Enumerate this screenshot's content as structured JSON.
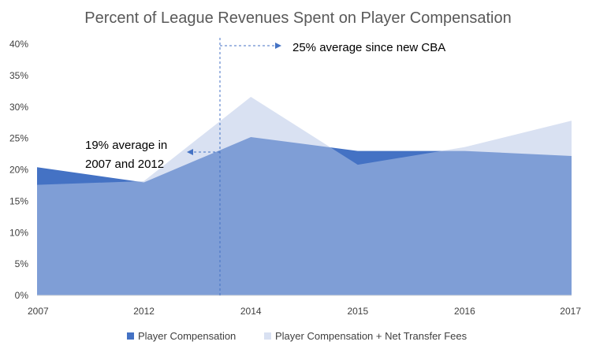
{
  "chart_data": {
    "type": "area",
    "title": "Percent of League Revenues Spent on Player Compensation",
    "categories": [
      "2007",
      "2012",
      "2014",
      "2015",
      "2016",
      "2017"
    ],
    "series": [
      {
        "name": "Player Compensation",
        "values": [
          20.4,
          18.0,
          25.2,
          23.0,
          23.0,
          22.2
        ],
        "color": "#4472C4"
      },
      {
        "name": "Player Compensation + Net Transfer Fees",
        "values": [
          17.6,
          18.2,
          31.6,
          20.8,
          23.6,
          27.8
        ],
        "color": "#D9E1F2"
      }
    ],
    "ylim": [
      0,
      40
    ],
    "yticks": [
      "0%",
      "5%",
      "10%",
      "15%",
      "20%",
      "25%",
      "30%",
      "35%",
      "40%"
    ],
    "grid": false,
    "legend_position": "bottom",
    "annotations": [
      {
        "lines": [
          "19% average in",
          "2007 and 2012"
        ],
        "value": 19
      },
      {
        "lines": [
          "25% average since new CBA"
        ],
        "value": 25
      }
    ]
  }
}
